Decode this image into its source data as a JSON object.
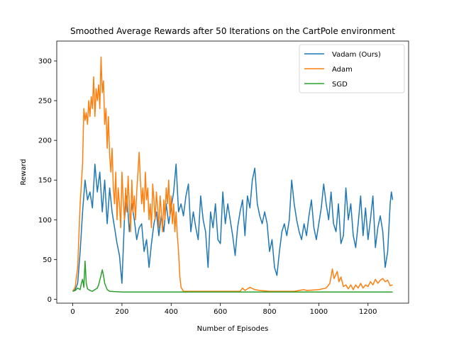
{
  "chart_data": {
    "type": "line",
    "title": "Smoothed Average Rewards after 50 Iterations on the CartPole environment",
    "xlabel": "Number of Episodes",
    "ylabel": "Reward",
    "xlim": [
      -65,
      1365
    ],
    "ylim": [
      -5,
      325
    ],
    "xticks": [
      0,
      200,
      400,
      600,
      800,
      1000,
      1200
    ],
    "yticks": [
      0,
      50,
      100,
      150,
      200,
      250,
      300
    ],
    "grid": false,
    "legend_position": "top-right",
    "series": [
      {
        "name": "Vadam (Ours)",
        "color": "#1f77b4",
        "points": [
          [
            0,
            10
          ],
          [
            10,
            12
          ],
          [
            20,
            20
          ],
          [
            30,
            60
          ],
          [
            40,
            110
          ],
          [
            50,
            150
          ],
          [
            60,
            125
          ],
          [
            70,
            135
          ],
          [
            80,
            115
          ],
          [
            90,
            170
          ],
          [
            100,
            135
          ],
          [
            110,
            160
          ],
          [
            120,
            110
          ],
          [
            130,
            150
          ],
          [
            140,
            95
          ],
          [
            150,
            140
          ],
          [
            160,
            110
          ],
          [
            170,
            90
          ],
          [
            180,
            70
          ],
          [
            190,
            55
          ],
          [
            200,
            20
          ],
          [
            210,
            100
          ],
          [
            220,
            130
          ],
          [
            230,
            85
          ],
          [
            240,
            120
          ],
          [
            250,
            100
          ],
          [
            260,
            75
          ],
          [
            270,
            90
          ],
          [
            280,
            95
          ],
          [
            290,
            60
          ],
          [
            300,
            75
          ],
          [
            310,
            40
          ],
          [
            320,
            70
          ],
          [
            330,
            95
          ],
          [
            340,
            110
          ],
          [
            350,
            80
          ],
          [
            360,
            105
          ],
          [
            370,
            85
          ],
          [
            380,
            120
          ],
          [
            390,
            95
          ],
          [
            400,
            115
          ],
          [
            410,
            135
          ],
          [
            420,
            170
          ],
          [
            430,
            110
          ],
          [
            440,
            120
          ],
          [
            450,
            105
          ],
          [
            460,
            130
          ],
          [
            470,
            145
          ],
          [
            480,
            85
          ],
          [
            490,
            110
          ],
          [
            500,
            90
          ],
          [
            510,
            75
          ],
          [
            520,
            130
          ],
          [
            530,
            100
          ],
          [
            540,
            85
          ],
          [
            550,
            40
          ],
          [
            560,
            110
          ],
          [
            570,
            90
          ],
          [
            580,
            120
          ],
          [
            590,
            75
          ],
          [
            600,
            70
          ],
          [
            610,
            135
          ],
          [
            620,
            95
          ],
          [
            630,
            120
          ],
          [
            640,
            100
          ],
          [
            650,
            80
          ],
          [
            660,
            55
          ],
          [
            670,
            90
          ],
          [
            680,
            110
          ],
          [
            690,
            125
          ],
          [
            700,
            80
          ],
          [
            710,
            130
          ],
          [
            720,
            115
          ],
          [
            730,
            150
          ],
          [
            740,
            165
          ],
          [
            750,
            120
          ],
          [
            760,
            105
          ],
          [
            770,
            95
          ],
          [
            780,
            110
          ],
          [
            790,
            95
          ],
          [
            800,
            60
          ],
          [
            810,
            75
          ],
          [
            820,
            40
          ],
          [
            830,
            30
          ],
          [
            840,
            60
          ],
          [
            850,
            85
          ],
          [
            860,
            95
          ],
          [
            870,
            80
          ],
          [
            880,
            100
          ],
          [
            890,
            150
          ],
          [
            900,
            120
          ],
          [
            910,
            100
          ],
          [
            920,
            85
          ],
          [
            930,
            75
          ],
          [
            940,
            95
          ],
          [
            950,
            80
          ],
          [
            960,
            105
          ],
          [
            970,
            125
          ],
          [
            980,
            90
          ],
          [
            990,
            75
          ],
          [
            1000,
            95
          ],
          [
            1010,
            115
          ],
          [
            1020,
            145
          ],
          [
            1030,
            120
          ],
          [
            1040,
            100
          ],
          [
            1050,
            135
          ],
          [
            1060,
            95
          ],
          [
            1070,
            85
          ],
          [
            1080,
            120
          ],
          [
            1090,
            70
          ],
          [
            1100,
            80
          ],
          [
            1110,
            140
          ],
          [
            1120,
            100
          ],
          [
            1130,
            120
          ],
          [
            1140,
            80
          ],
          [
            1150,
            65
          ],
          [
            1160,
            95
          ],
          [
            1170,
            130
          ],
          [
            1180,
            80
          ],
          [
            1190,
            115
          ],
          [
            1200,
            75
          ],
          [
            1210,
            100
          ],
          [
            1220,
            130
          ],
          [
            1230,
            65
          ],
          [
            1240,
            90
          ],
          [
            1250,
            105
          ],
          [
            1260,
            85
          ],
          [
            1270,
            40
          ],
          [
            1280,
            60
          ],
          [
            1290,
            120
          ],
          [
            1295,
            135
          ],
          [
            1300,
            125
          ]
        ]
      },
      {
        "name": "Adam",
        "color": "#ff7f0e",
        "points": [
          [
            0,
            10
          ],
          [
            10,
            15
          ],
          [
            20,
            40
          ],
          [
            30,
            120
          ],
          [
            40,
            170
          ],
          [
            45,
            240
          ],
          [
            50,
            225
          ],
          [
            55,
            235
          ],
          [
            60,
            220
          ],
          [
            65,
            250
          ],
          [
            70,
            230
          ],
          [
            75,
            255
          ],
          [
            80,
            240
          ],
          [
            85,
            280
          ],
          [
            90,
            230
          ],
          [
            95,
            265
          ],
          [
            100,
            250
          ],
          [
            105,
            270
          ],
          [
            110,
            240
          ],
          [
            115,
            305
          ],
          [
            120,
            260
          ],
          [
            125,
            275
          ],
          [
            130,
            220
          ],
          [
            135,
            240
          ],
          [
            140,
            190
          ],
          [
            145,
            230
          ],
          [
            150,
            180
          ],
          [
            155,
            160
          ],
          [
            160,
            190
          ],
          [
            165,
            140
          ],
          [
            170,
            120
          ],
          [
            175,
            160
          ],
          [
            180,
            100
          ],
          [
            185,
            140
          ],
          [
            190,
            120
          ],
          [
            195,
            90
          ],
          [
            200,
            160
          ],
          [
            205,
            125
          ],
          [
            210,
            100
          ],
          [
            215,
            140
          ],
          [
            220,
            110
          ],
          [
            225,
            155
          ],
          [
            230,
            120
          ],
          [
            235,
            85
          ],
          [
            240,
            150
          ],
          [
            245,
            110
          ],
          [
            250,
            130
          ],
          [
            255,
            100
          ],
          [
            260,
            135
          ],
          [
            265,
            160
          ],
          [
            270,
            185
          ],
          [
            275,
            150
          ],
          [
            280,
            120
          ],
          [
            285,
            140
          ],
          [
            290,
            110
          ],
          [
            295,
            160
          ],
          [
            300,
            125
          ],
          [
            305,
            140
          ],
          [
            310,
            100
          ],
          [
            315,
            120
          ],
          [
            320,
            90
          ],
          [
            325,
            145
          ],
          [
            330,
            125
          ],
          [
            335,
            100
          ],
          [
            340,
            135
          ],
          [
            345,
            115
          ],
          [
            350,
            90
          ],
          [
            355,
            130
          ],
          [
            360,
            110
          ],
          [
            365,
            85
          ],
          [
            370,
            125
          ],
          [
            375,
            100
          ],
          [
            380,
            140
          ],
          [
            385,
            120
          ],
          [
            390,
            150
          ],
          [
            395,
            105
          ],
          [
            400,
            130
          ],
          [
            405,
            95
          ],
          [
            410,
            120
          ],
          [
            415,
            85
          ],
          [
            420,
            110
          ],
          [
            425,
            80
          ],
          [
            430,
            60
          ],
          [
            435,
            30
          ],
          [
            440,
            15
          ],
          [
            450,
            10
          ],
          [
            500,
            10
          ],
          [
            600,
            10
          ],
          [
            680,
            10
          ],
          [
            690,
            14
          ],
          [
            700,
            11
          ],
          [
            720,
            15
          ],
          [
            740,
            12
          ],
          [
            760,
            11
          ],
          [
            800,
            10
          ],
          [
            900,
            10
          ],
          [
            940,
            12
          ],
          [
            950,
            11
          ],
          [
            1000,
            12
          ],
          [
            1030,
            14
          ],
          [
            1045,
            20
          ],
          [
            1055,
            38
          ],
          [
            1062,
            26
          ],
          [
            1068,
            30
          ],
          [
            1075,
            35
          ],
          [
            1082,
            22
          ],
          [
            1090,
            28
          ],
          [
            1100,
            16
          ],
          [
            1110,
            18
          ],
          [
            1120,
            13
          ],
          [
            1130,
            18
          ],
          [
            1140,
            12
          ],
          [
            1150,
            18
          ],
          [
            1160,
            14
          ],
          [
            1170,
            20
          ],
          [
            1180,
            14
          ],
          [
            1190,
            18
          ],
          [
            1200,
            16
          ],
          [
            1210,
            22
          ],
          [
            1220,
            18
          ],
          [
            1230,
            25
          ],
          [
            1240,
            20
          ],
          [
            1250,
            24
          ],
          [
            1260,
            26
          ],
          [
            1270,
            22
          ],
          [
            1280,
            24
          ],
          [
            1290,
            17
          ],
          [
            1300,
            18
          ]
        ]
      },
      {
        "name": "SGD",
        "color": "#2ca02c",
        "points": [
          [
            0,
            10
          ],
          [
            10,
            11
          ],
          [
            20,
            14
          ],
          [
            30,
            12
          ],
          [
            35,
            20
          ],
          [
            40,
            25
          ],
          [
            45,
            15
          ],
          [
            50,
            48
          ],
          [
            55,
            20
          ],
          [
            60,
            13
          ],
          [
            70,
            11
          ],
          [
            80,
            10
          ],
          [
            90,
            12
          ],
          [
            100,
            14
          ],
          [
            105,
            18
          ],
          [
            110,
            24
          ],
          [
            115,
            30
          ],
          [
            120,
            37
          ],
          [
            125,
            30
          ],
          [
            130,
            20
          ],
          [
            140,
            12
          ],
          [
            150,
            10
          ],
          [
            200,
            9
          ],
          [
            300,
            9
          ],
          [
            400,
            9
          ],
          [
            500,
            9
          ],
          [
            600,
            9
          ],
          [
            700,
            9
          ],
          [
            800,
            9
          ],
          [
            900,
            9
          ],
          [
            1000,
            9
          ],
          [
            1100,
            9
          ],
          [
            1200,
            9
          ],
          [
            1300,
            9
          ]
        ]
      }
    ]
  }
}
